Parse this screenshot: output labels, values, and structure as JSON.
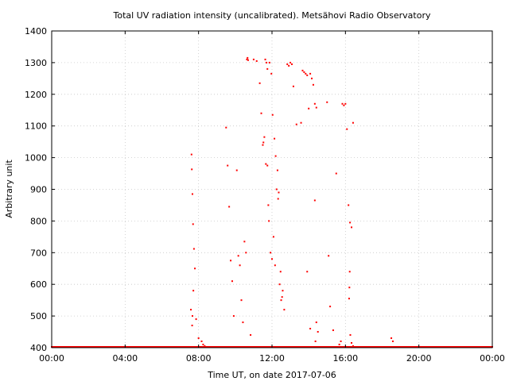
{
  "chart_data": {
    "type": "scatter",
    "title": "Total UV radiation intensity (uncalibrated). Metsähovi Radio Observatory",
    "xlabel": "Time UT, on date 2017-07-06",
    "ylabel": "Arbitrary unit",
    "xlim": [
      "00:00",
      "24:00"
    ],
    "ylim": [
      400,
      1400
    ],
    "x_ticks": [
      "00:00",
      "04:00",
      "08:00",
      "12:00",
      "16:00",
      "20:00",
      "00:00"
    ],
    "y_ticks": [
      "400",
      "500",
      "600",
      "700",
      "800",
      "900",
      "1000",
      "1100",
      "1200",
      "1300",
      "1400"
    ],
    "grid": true,
    "legend": "none",
    "point_color": "#ff0000",
    "baseline_value": 400,
    "series": [
      {
        "x": [
          "07:35",
          "07:37",
          "07:38",
          "07:40",
          "07:42",
          "07:45",
          "07:48",
          "07:40",
          "07:39",
          "07:43",
          "07:52",
          "08:00",
          "08:10",
          "08:15",
          "08:20",
          "09:30",
          "09:35",
          "09:40",
          "09:45",
          "09:50",
          "09:55",
          "10:05",
          "10:10",
          "10:15",
          "10:20",
          "10:25",
          "10:30",
          "10:35",
          "10:40",
          "10:38",
          "10:42",
          "10:50",
          "11:00",
          "11:10",
          "11:20",
          "11:25",
          "11:30",
          "11:32",
          "11:35",
          "11:40",
          "11:45",
          "11:48",
          "11:50",
          "11:55",
          "12:00",
          "12:05",
          "12:10",
          "12:15",
          "12:20",
          "12:25",
          "12:30",
          "12:35",
          "12:40",
          "11:38",
          "11:42",
          "11:45",
          "11:52",
          "11:58",
          "12:02",
          "12:08",
          "12:12",
          "12:18",
          "12:22",
          "12:28",
          "12:33",
          "12:50",
          "12:55",
          "13:00",
          "13:05",
          "13:10",
          "13:20",
          "13:35",
          "13:40",
          "13:45",
          "13:50",
          "13:55",
          "14:00",
          "14:05",
          "14:10",
          "14:15",
          "14:20",
          "14:25",
          "13:55",
          "14:05",
          "14:20",
          "14:25",
          "14:22",
          "14:30",
          "15:00",
          "15:05",
          "15:10",
          "15:20",
          "15:30",
          "15:40",
          "15:45",
          "15:50",
          "15:55",
          "16:00",
          "16:05",
          "16:10",
          "16:15",
          "16:20",
          "16:25",
          "16:12",
          "16:13",
          "16:14",
          "16:16",
          "16:20",
          "16:25",
          "18:30",
          "18:35"
        ],
        "y": [
          520,
          1010,
          963,
          885,
          790,
          712,
          650,
          500,
          470,
          580,
          490,
          430,
          420,
          410,
          405,
          1095,
          975,
          845,
          675,
          610,
          500,
          960,
          690,
          660,
          550,
          480,
          735,
          700,
          1315,
          1310,
          1308,
          440,
          1310,
          1305,
          1235,
          1140,
          1040,
          1048,
          1065,
          980,
          975,
          850,
          800,
          700,
          680,
          750,
          660,
          900,
          870,
          600,
          550,
          580,
          520,
          1310,
          1300,
          1280,
          1300,
          1265,
          1135,
          1060,
          1005,
          960,
          890,
          640,
          560,
          1295,
          1290,
          1300,
          1295,
          1225,
          1105,
          1110,
          1275,
          1270,
          1265,
          1260,
          1155,
          1265,
          1250,
          1230,
          1170,
          1158,
          640,
          460,
          865,
          480,
          420,
          450,
          1175,
          690,
          530,
          455,
          950,
          410,
          420,
          1170,
          1165,
          1170,
          1090,
          850,
          795,
          780,
          1110,
          555,
          590,
          640,
          440,
          415,
          405,
          430,
          420
        ]
      }
    ]
  }
}
